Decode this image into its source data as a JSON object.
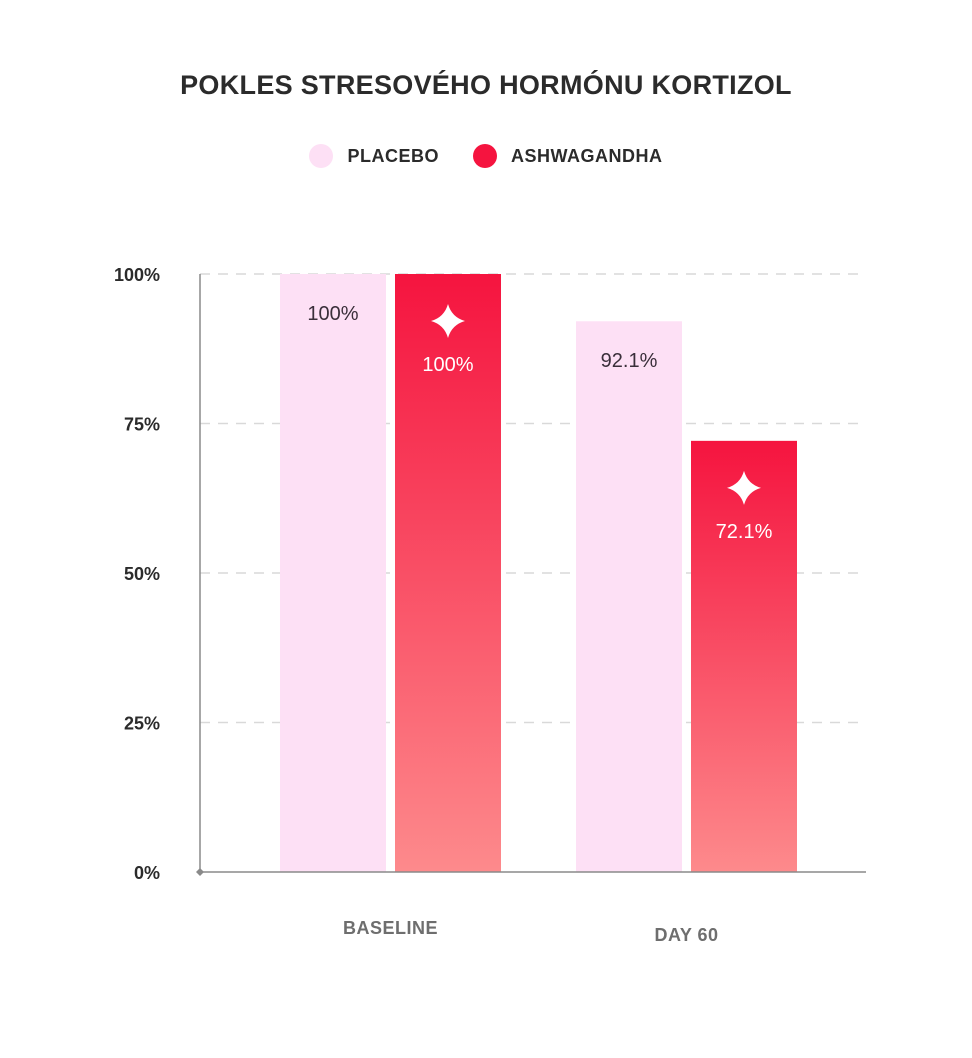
{
  "chart_data": {
    "type": "bar",
    "title": "POKLES STRESOVÉHO HORMÓNU KORTIZOL",
    "categories": [
      "BASELINE",
      "DAY 60"
    ],
    "series": [
      {
        "name": "PLACEBO",
        "values": [
          100,
          92.1
        ],
        "labels": [
          "100%",
          "92.1%"
        ],
        "color": "#fde0f5"
      },
      {
        "name": "ASHWAGANDHA",
        "values": [
          100,
          72.1
        ],
        "labels": [
          "100%",
          "72.1%"
        ],
        "color_top": "#f5143f",
        "color_bottom": "#fd8a8c",
        "marker_icon": "sparkle-icon"
      }
    ],
    "ylim": [
      0,
      100
    ],
    "yticks": [
      0,
      25,
      50,
      75,
      100
    ],
    "ytick_labels": [
      "0%",
      "25%",
      "50%",
      "75%",
      "100%"
    ],
    "grid": "dashed-horizontal",
    "legend_position": "top-center"
  }
}
